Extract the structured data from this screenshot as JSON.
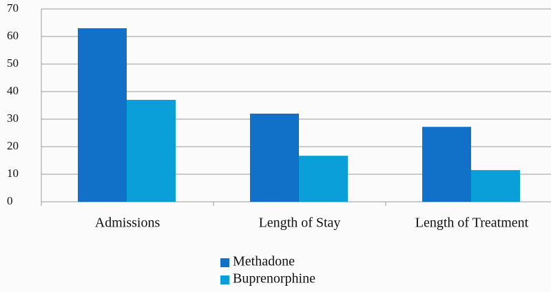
{
  "chart_data": {
    "type": "bar",
    "categories": [
      "Admissions",
      "Length of Stay",
      "Length of Treatment"
    ],
    "series": [
      {
        "name": "Methadone",
        "color": "#1170c8",
        "values": [
          63,
          32,
          27.2
        ]
      },
      {
        "name": "Buprenorphine",
        "color": "#0a9fd8",
        "values": [
          37,
          16.7,
          11.5
        ]
      }
    ],
    "ylim": [
      0,
      70
    ],
    "yticks": [
      0,
      10,
      20,
      30,
      40,
      50,
      60,
      70
    ],
    "grid": true,
    "legend": "bottom"
  }
}
